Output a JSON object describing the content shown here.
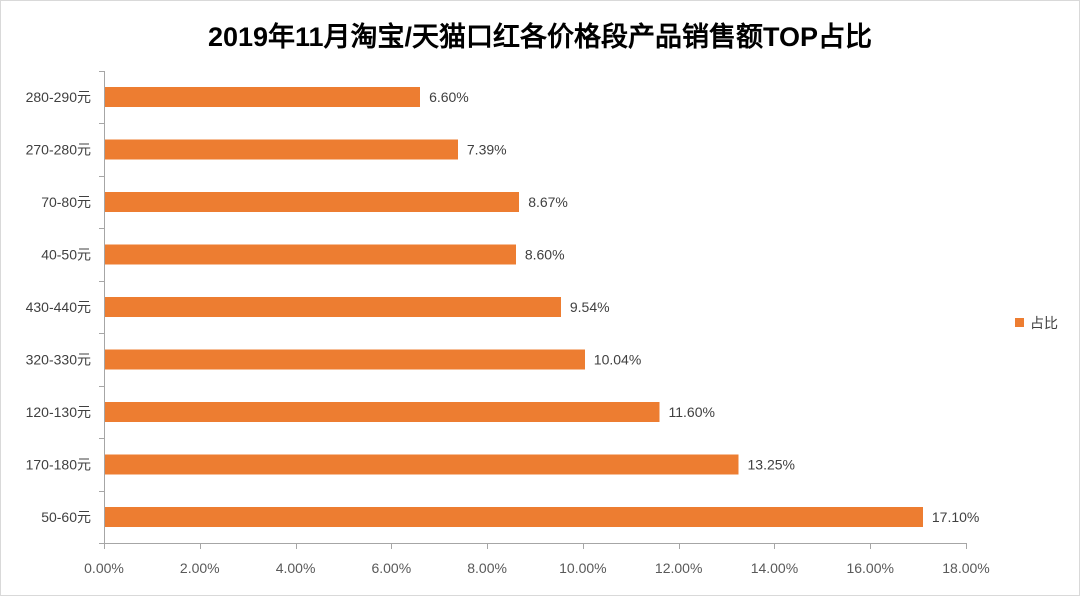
{
  "chart_data": {
    "type": "bar",
    "orientation": "horizontal",
    "title": "2019年11月淘宝/天猫口红各价格段产品销售额TOP占比",
    "categories": [
      "280-290元",
      "270-280元",
      "70-80元",
      "40-50元",
      "430-440元",
      "320-330元",
      "120-130元",
      "170-180元",
      "50-60元"
    ],
    "series": [
      {
        "name": "占比",
        "values": [
          6.6,
          7.39,
          8.67,
          8.6,
          9.54,
          10.04,
          11.6,
          13.25,
          17.1
        ],
        "color": "#ED7D31"
      }
    ],
    "data_labels": [
      "6.60%",
      "7.39%",
      "8.67%",
      "8.60%",
      "9.54%",
      "10.04%",
      "11.60%",
      "13.25%",
      "17.10%"
    ],
    "xlim": [
      0,
      18
    ],
    "x_ticks": [
      0,
      2,
      4,
      6,
      8,
      10,
      12,
      14,
      16,
      18
    ],
    "x_tick_labels": [
      "0.00%",
      "2.00%",
      "4.00%",
      "6.00%",
      "8.00%",
      "10.00%",
      "12.00%",
      "14.00%",
      "16.00%",
      "18.00%"
    ],
    "grid": false,
    "legend": "right"
  },
  "colors": {
    "bar": "#ED7D31",
    "axis": "#A6A6A6",
    "border": "#D9D9D9",
    "text": "#404040"
  }
}
